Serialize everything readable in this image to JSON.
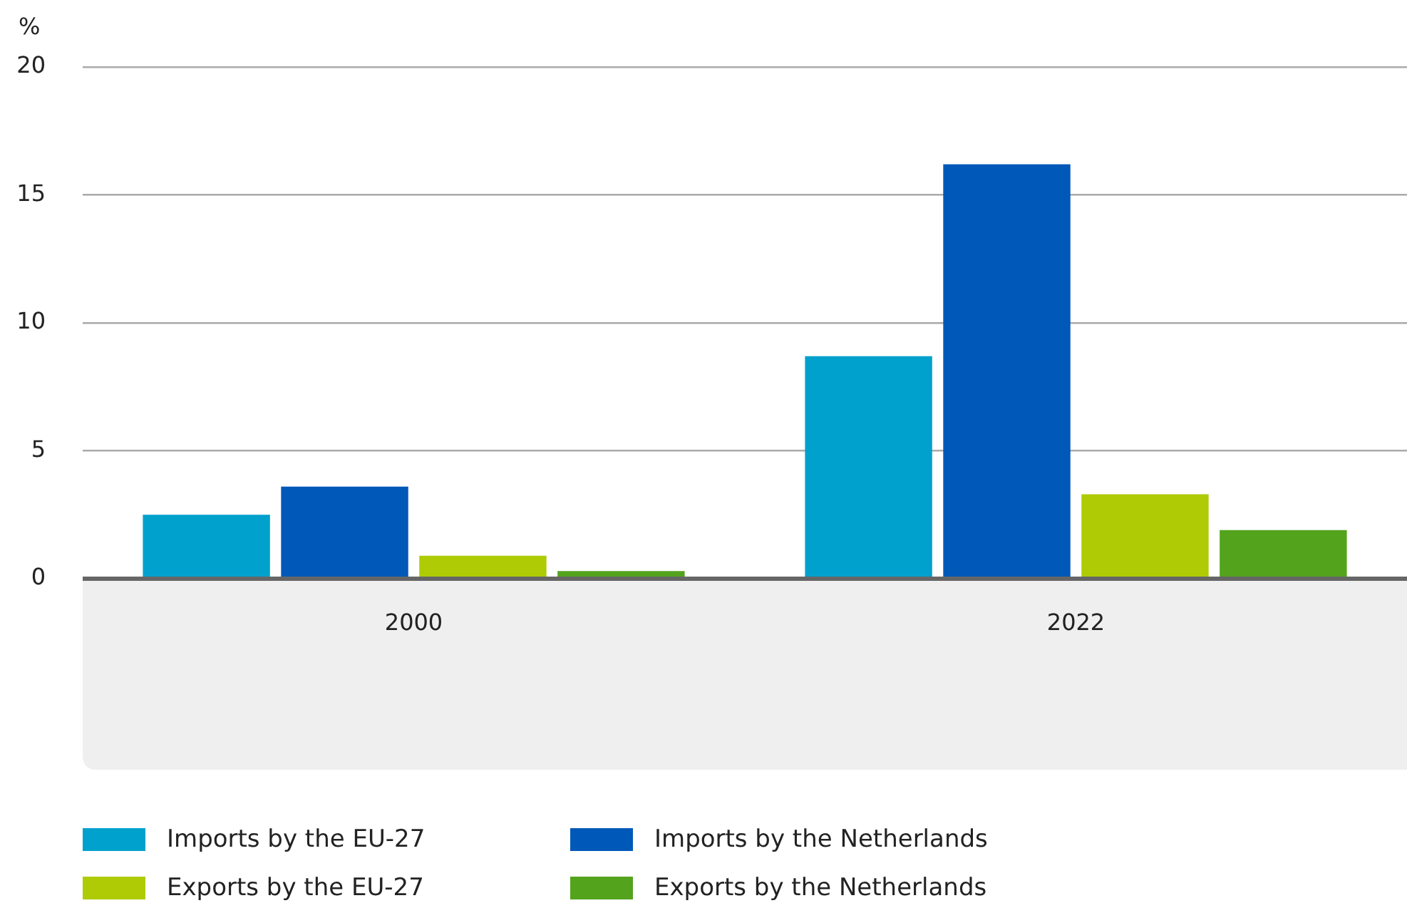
{
  "chart_data": {
    "type": "bar",
    "ylabel": "%",
    "categories": [
      "2000",
      "2022"
    ],
    "series": [
      {
        "name": "Imports by the EU-27",
        "color": "#00a1cd",
        "values": [
          2.5,
          8.7
        ]
      },
      {
        "name": "Imports by the Netherlands",
        "color": "#0058b8",
        "values": [
          3.6,
          16.2
        ]
      },
      {
        "name": "Exports by the EU-27",
        "color": "#afcb05",
        "values": [
          0.9,
          3.3
        ]
      },
      {
        "name": "Exports by the Netherlands",
        "color": "#53a31d",
        "values": [
          0.3,
          1.9
        ]
      }
    ],
    "ylim": [
      0,
      20
    ],
    "yticks": [
      0,
      5,
      10,
      15,
      20
    ],
    "grid": "y",
    "legend": "bottom"
  }
}
